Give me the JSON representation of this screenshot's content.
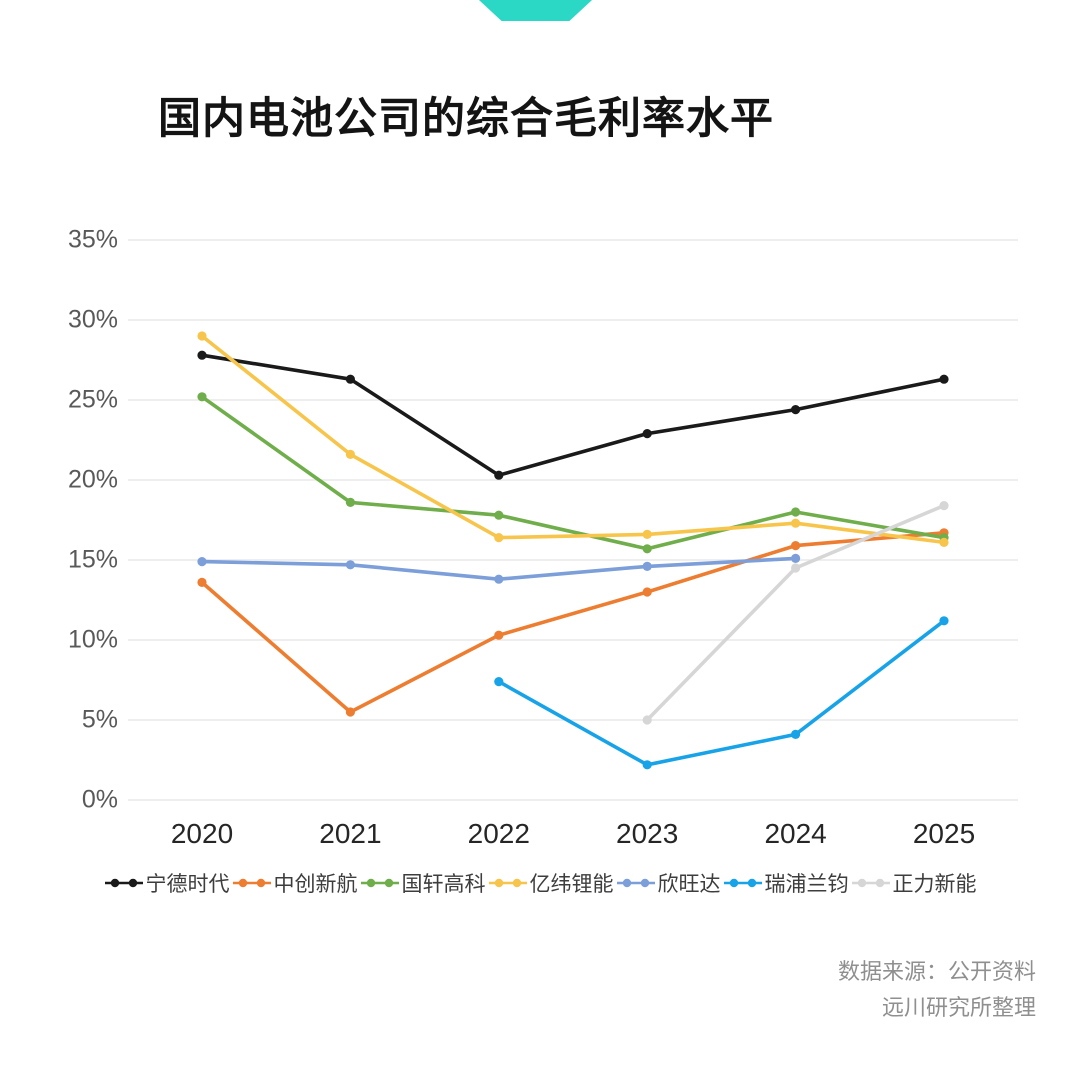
{
  "page": {
    "title": "国内电池公司的综合毛利率水平",
    "accent_color": "#2BD7C5",
    "source_line1": "数据来源：公开资料",
    "source_line2": "远川研究所整理"
  },
  "chart_data": {
    "type": "line",
    "title": "国内电池公司的综合毛利率水平",
    "categories": [
      "2020",
      "2021",
      "2022",
      "2023",
      "2024",
      "2025"
    ],
    "ylim": [
      0,
      35
    ],
    "ytick_values": [
      0,
      5,
      10,
      15,
      20,
      25,
      30,
      35
    ],
    "ytick_labels": [
      "0%",
      "5%",
      "10%",
      "15%",
      "20%",
      "25%",
      "30%",
      "35%"
    ],
    "grid": true,
    "grid_color": "#e8e8e8",
    "legend_position": "bottom",
    "series": [
      {
        "name": "宁德时代",
        "color": "#1a1a1a",
        "values": [
          27.8,
          26.3,
          20.3,
          22.9,
          24.4,
          26.3
        ]
      },
      {
        "name": "中创新航",
        "color": "#ED7D31",
        "values": [
          13.6,
          5.5,
          10.3,
          13.0,
          15.9,
          16.7
        ]
      },
      {
        "name": "国轩高科",
        "color": "#6FAE4B",
        "values": [
          25.2,
          18.6,
          17.8,
          15.7,
          18.0,
          16.4
        ]
      },
      {
        "name": "亿纬锂能",
        "color": "#F7C54B",
        "values": [
          29.0,
          21.6,
          16.4,
          16.6,
          17.3,
          16.1
        ]
      },
      {
        "name": "欣旺达",
        "color": "#7C9ED9",
        "values": [
          14.9,
          14.7,
          13.8,
          14.6,
          15.1,
          null
        ]
      },
      {
        "name": "瑞浦兰钧",
        "color": "#18A3E8",
        "values": [
          null,
          null,
          7.4,
          2.2,
          4.1,
          11.2
        ]
      },
      {
        "name": "正力新能",
        "color": "#D6D6D6",
        "values": [
          null,
          null,
          null,
          5.0,
          14.5,
          18.4
        ]
      }
    ]
  }
}
